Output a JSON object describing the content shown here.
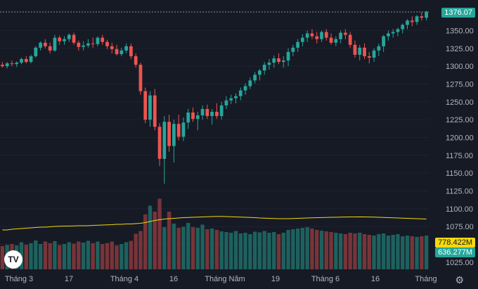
{
  "chart_data": {
    "type": "candlestick",
    "y_range": [
      1015,
      1385
    ],
    "y_ticks": [
      "1350.00",
      "1325.00",
      "1300.00",
      "1275.00",
      "1250.00",
      "1225.00",
      "1200.00",
      "1175.00",
      "1150.00",
      "1125.00",
      "1100.00",
      "1075.00",
      "1050.00",
      "1025.00"
    ],
    "x_ticks": [
      "Tháng 3",
      "17",
      "Tháng 4",
      "16",
      "Tháng Năm",
      "19",
      "Tháng 6",
      "16",
      "Tháng"
    ],
    "last_price": "1376.07",
    "volume_labels": [
      "778.422M",
      "636.277M"
    ],
    "candles": [
      [
        1302,
        1306,
        1298,
        1300
      ],
      [
        1300,
        1306,
        1297,
        1304
      ],
      [
        1304,
        1308,
        1300,
        1303
      ],
      [
        1303,
        1307,
        1299,
        1305
      ],
      [
        1305,
        1312,
        1303,
        1310
      ],
      [
        1310,
        1314,
        1304,
        1306
      ],
      [
        1306,
        1316,
        1304,
        1314
      ],
      [
        1314,
        1328,
        1312,
        1326
      ],
      [
        1326,
        1335,
        1322,
        1333
      ],
      [
        1333,
        1338,
        1325,
        1328
      ],
      [
        1328,
        1333,
        1318,
        1322
      ],
      [
        1322,
        1344,
        1320,
        1340
      ],
      [
        1340,
        1343,
        1330,
        1335
      ],
      [
        1335,
        1342,
        1330,
        1338
      ],
      [
        1338,
        1346,
        1334,
        1344
      ],
      [
        1344,
        1347,
        1330,
        1333
      ],
      [
        1333,
        1336,
        1322,
        1327
      ],
      [
        1327,
        1335,
        1322,
        1329
      ],
      [
        1329,
        1338,
        1326,
        1332
      ],
      [
        1332,
        1340,
        1326,
        1331
      ],
      [
        1331,
        1342,
        1328,
        1340
      ],
      [
        1340,
        1344,
        1330,
        1334
      ],
      [
        1334,
        1337,
        1324,
        1328
      ],
      [
        1328,
        1333,
        1318,
        1324
      ],
      [
        1324,
        1330,
        1315,
        1317
      ],
      [
        1317,
        1326,
        1314,
        1322
      ],
      [
        1322,
        1332,
        1318,
        1328
      ],
      [
        1328,
        1332,
        1310,
        1314
      ],
      [
        1314,
        1318,
        1298,
        1302
      ],
      [
        1302,
        1305,
        1260,
        1265
      ],
      [
        1265,
        1270,
        1220,
        1225
      ],
      [
        1225,
        1265,
        1215,
        1259
      ],
      [
        1259,
        1268,
        1210,
        1215
      ],
      [
        1215,
        1220,
        1160,
        1170
      ],
      [
        1170,
        1230,
        1135,
        1222
      ],
      [
        1222,
        1232,
        1180,
        1188
      ],
      [
        1188,
        1225,
        1165,
        1219
      ],
      [
        1219,
        1232,
        1196,
        1201
      ],
      [
        1201,
        1228,
        1195,
        1221
      ],
      [
        1221,
        1240,
        1212,
        1235
      ],
      [
        1235,
        1242,
        1222,
        1226
      ],
      [
        1226,
        1236,
        1210,
        1231
      ],
      [
        1231,
        1245,
        1225,
        1240
      ],
      [
        1240,
        1246,
        1226,
        1230
      ],
      [
        1230,
        1240,
        1218,
        1236
      ],
      [
        1236,
        1248,
        1226,
        1230
      ],
      [
        1230,
        1250,
        1225,
        1245
      ],
      [
        1245,
        1258,
        1240,
        1252
      ],
      [
        1252,
        1260,
        1247,
        1255
      ],
      [
        1255,
        1262,
        1248,
        1258
      ],
      [
        1258,
        1270,
        1252,
        1266
      ],
      [
        1266,
        1276,
        1260,
        1272
      ],
      [
        1272,
        1284,
        1268,
        1280
      ],
      [
        1280,
        1292,
        1276,
        1288
      ],
      [
        1288,
        1296,
        1280,
        1294
      ],
      [
        1294,
        1306,
        1288,
        1302
      ],
      [
        1302,
        1310,
        1295,
        1305
      ],
      [
        1305,
        1315,
        1298,
        1311
      ],
      [
        1311,
        1318,
        1303,
        1306
      ],
      [
        1306,
        1314,
        1298,
        1308
      ],
      [
        1308,
        1325,
        1300,
        1320
      ],
      [
        1320,
        1330,
        1314,
        1326
      ],
      [
        1326,
        1338,
        1320,
        1334
      ],
      [
        1334,
        1345,
        1328,
        1340
      ],
      [
        1340,
        1350,
        1334,
        1346
      ],
      [
        1346,
        1352,
        1338,
        1342
      ],
      [
        1342,
        1348,
        1332,
        1338
      ],
      [
        1338,
        1350,
        1334,
        1348
      ],
      [
        1348,
        1352,
        1336,
        1340
      ],
      [
        1340,
        1346,
        1330,
        1333
      ],
      [
        1333,
        1342,
        1328,
        1338
      ],
      [
        1338,
        1350,
        1332,
        1347
      ],
      [
        1347,
        1352,
        1338,
        1344
      ],
      [
        1344,
        1348,
        1326,
        1330
      ],
      [
        1330,
        1336,
        1312,
        1316
      ],
      [
        1316,
        1330,
        1308,
        1326
      ],
      [
        1326,
        1332,
        1310,
        1314
      ],
      [
        1314,
        1320,
        1304,
        1312
      ],
      [
        1312,
        1325,
        1306,
        1322
      ],
      [
        1322,
        1332,
        1314,
        1328
      ],
      [
        1328,
        1344,
        1320,
        1342
      ],
      [
        1342,
        1350,
        1336,
        1346
      ],
      [
        1346,
        1352,
        1340,
        1348
      ],
      [
        1348,
        1354,
        1342,
        1352
      ],
      [
        1352,
        1360,
        1346,
        1358
      ],
      [
        1358,
        1366,
        1352,
        1364
      ],
      [
        1364,
        1370,
        1356,
        1362
      ],
      [
        1362,
        1372,
        1358,
        1370
      ],
      [
        1370,
        1376,
        1364,
        1368
      ],
      [
        1368,
        1378,
        1364,
        1376
      ]
    ],
    "volumes": [
      330,
      348,
      360,
      340,
      385,
      350,
      372,
      410,
      360,
      395,
      372,
      400,
      345,
      360,
      385,
      365,
      395,
      380,
      405,
      372,
      395,
      360,
      372,
      395,
      340,
      360,
      385,
      405,
      505,
      545,
      780,
      905,
      820,
      1005,
      600,
      820,
      650,
      590,
      605,
      660,
      600,
      590,
      635,
      570,
      580,
      560,
      540,
      530,
      520,
      545,
      510,
      520,
      500,
      535,
      525,
      545,
      520,
      530,
      500,
      520,
      560,
      570,
      580,
      590,
      600,
      580,
      560,
      550,
      540,
      530,
      520,
      510,
      500,
      520,
      510,
      520,
      500,
      490,
      480,
      500,
      510,
      480,
      490,
      500,
      470,
      480,
      470,
      460,
      470,
      480
    ],
    "volume_ma": [
      560,
      560,
      570,
      575,
      580,
      585,
      590,
      595,
      600,
      600,
      605,
      610,
      612,
      615,
      615,
      618,
      620,
      620,
      620,
      625,
      628,
      630,
      632,
      635,
      640,
      640,
      645,
      645,
      650,
      655,
      665,
      680,
      695,
      705,
      715,
      720,
      725,
      730,
      735,
      738,
      740,
      742,
      745,
      748,
      750,
      752,
      752,
      750,
      748,
      745,
      742,
      740,
      738,
      735,
      730,
      728,
      725,
      722,
      720,
      720,
      720,
      722,
      725,
      728,
      730,
      732,
      734,
      736,
      738,
      740,
      740,
      742,
      744,
      745,
      745,
      746,
      745,
      744,
      742,
      740,
      738,
      735,
      732,
      730,
      728,
      725,
      722,
      720,
      718,
      715
    ]
  }
}
